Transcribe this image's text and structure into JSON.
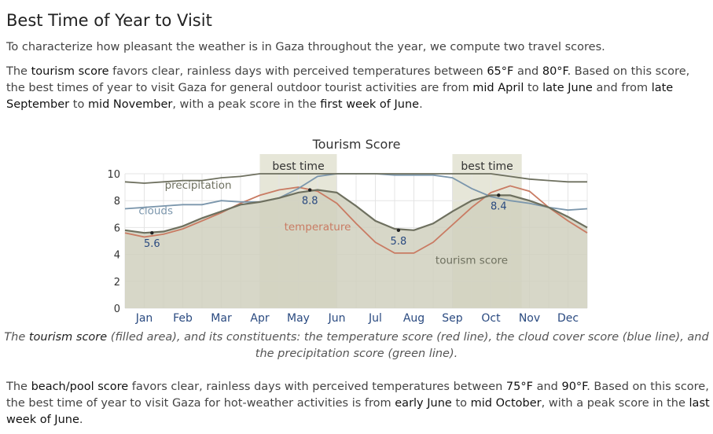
{
  "heading": "Best Time of Year to Visit",
  "intro": "To characterize how pleasant the weather is in Gaza throughout the year, we compute two travel scores.",
  "tourism_paragraph": [
    {
      "t": "The ",
      "b": false
    },
    {
      "t": "tourism score",
      "b": true
    },
    {
      "t": " favors clear, rainless days with perceived temperatures between ",
      "b": false
    },
    {
      "t": "65°F",
      "b": true
    },
    {
      "t": " and ",
      "b": false
    },
    {
      "t": "80°F",
      "b": true
    },
    {
      "t": ". Based on this score, the best times of year to visit Gaza for general outdoor tourist activities are from ",
      "b": false
    },
    {
      "t": "mid April",
      "b": true
    },
    {
      "t": " to ",
      "b": false
    },
    {
      "t": "late June",
      "b": true
    },
    {
      "t": " and from ",
      "b": false
    },
    {
      "t": "late September",
      "b": true
    },
    {
      "t": " to ",
      "b": false
    },
    {
      "t": "mid November",
      "b": true
    },
    {
      "t": ", with a peak score in the ",
      "b": false
    },
    {
      "t": "first week of June",
      "b": true
    },
    {
      "t": ".",
      "b": false
    }
  ],
  "caption": [
    {
      "t": "The ",
      "b": false
    },
    {
      "t": "tourism score",
      "b": true
    },
    {
      "t": " (filled area), and its constituents: the temperature score (red line), the cloud cover score (blue line), and the precipitation score (green line).",
      "b": false
    }
  ],
  "beach_paragraph": [
    {
      "t": "The ",
      "b": false
    },
    {
      "t": "beach/pool score",
      "b": true
    },
    {
      "t": " favors clear, rainless days with perceived temperatures between ",
      "b": false
    },
    {
      "t": "75°F",
      "b": true
    },
    {
      "t": " and ",
      "b": false
    },
    {
      "t": "90°F",
      "b": true
    },
    {
      "t": ". Based on this score, the best time of year to visit Gaza for hot-weather activities is from ",
      "b": false
    },
    {
      "t": "early June",
      "b": true
    },
    {
      "t": " to ",
      "b": false
    },
    {
      "t": "mid October",
      "b": true
    },
    {
      "t": ", with a peak score in the ",
      "b": false
    },
    {
      "t": "last week of June",
      "b": true
    },
    {
      "t": ".",
      "b": false
    }
  ],
  "chart_data": {
    "type": "area",
    "title": "Tourism Score",
    "ylim": [
      0,
      10
    ],
    "y_ticks": [
      0,
      2,
      4,
      6,
      8,
      10
    ],
    "categories": [
      "Jan",
      "Feb",
      "Mar",
      "Apr",
      "May",
      "Jun",
      "Jul",
      "Aug",
      "Sep",
      "Oct",
      "Nov",
      "Dec"
    ],
    "x_range": [
      0,
      12
    ],
    "grid": true,
    "best_time_label": "best time",
    "best_time_ranges": [
      [
        3.5,
        5.5
      ],
      [
        8.5,
        10.3
      ]
    ],
    "series": [
      {
        "name": "tourism score",
        "role": "filled-area",
        "color": "#6e705f",
        "fill": "#d0d0be",
        "x": [
          0,
          0.5,
          1,
          1.5,
          2,
          2.5,
          3,
          3.5,
          4,
          4.5,
          5,
          5.5,
          6,
          6.5,
          7,
          7.5,
          8,
          8.5,
          9,
          9.5,
          10,
          10.5,
          11,
          11.5,
          12
        ],
        "values": [
          5.8,
          5.6,
          5.7,
          6.1,
          6.7,
          7.2,
          7.7,
          7.9,
          8.2,
          8.6,
          8.8,
          8.6,
          7.6,
          6.5,
          5.9,
          5.8,
          6.3,
          7.2,
          8.0,
          8.4,
          8.4,
          8.0,
          7.5,
          6.8,
          6.0
        ]
      },
      {
        "name": "temperature",
        "role": "line",
        "color": "#c97b63",
        "x": [
          0,
          0.5,
          1,
          1.5,
          2,
          2.5,
          3,
          3.5,
          4,
          4.5,
          5,
          5.5,
          6,
          6.5,
          7,
          7.5,
          8,
          8.5,
          9,
          9.5,
          10,
          10.5,
          11,
          11.5,
          12
        ],
        "values": [
          5.6,
          5.3,
          5.5,
          5.9,
          6.5,
          7.1,
          7.8,
          8.4,
          8.8,
          9.0,
          8.7,
          7.8,
          6.3,
          4.9,
          4.1,
          4.1,
          4.9,
          6.2,
          7.5,
          8.6,
          9.1,
          8.7,
          7.5,
          6.5,
          5.6
        ]
      },
      {
        "name": "clouds",
        "role": "line",
        "color": "#7b96ac",
        "x": [
          0,
          0.5,
          1,
          1.5,
          2,
          2.5,
          3,
          3.5,
          4,
          4.5,
          5,
          5.5,
          6,
          6.5,
          7,
          7.5,
          8,
          8.5,
          9,
          9.5,
          10,
          10.5,
          11,
          11.5,
          12
        ],
        "values": [
          7.4,
          7.5,
          7.6,
          7.7,
          7.7,
          8.0,
          7.9,
          7.9,
          8.2,
          8.9,
          9.8,
          10.0,
          10.0,
          10.0,
          9.9,
          9.9,
          9.9,
          9.7,
          8.9,
          8.3,
          8.0,
          7.8,
          7.5,
          7.3,
          7.4
        ]
      },
      {
        "name": "precipitation",
        "role": "line",
        "color": "#6e705f",
        "x": [
          0,
          0.5,
          1,
          1.5,
          2,
          2.5,
          3,
          3.5,
          4,
          4.5,
          5,
          5.5,
          6,
          6.5,
          7,
          7.5,
          8,
          8.5,
          9,
          9.5,
          10,
          10.5,
          11,
          11.5,
          12
        ],
        "values": [
          9.4,
          9.3,
          9.4,
          9.5,
          9.5,
          9.7,
          9.8,
          10.0,
          10.0,
          10.0,
          10.0,
          10.0,
          10.0,
          10.0,
          10.0,
          10.0,
          10.0,
          10.0,
          10.0,
          10.0,
          9.8,
          9.6,
          9.5,
          9.4,
          9.4
        ]
      }
    ],
    "annotations": [
      {
        "x": 0.7,
        "y": 5.6,
        "label": "5.6"
      },
      {
        "x": 4.8,
        "y": 8.8,
        "label": "8.8"
      },
      {
        "x": 7.1,
        "y": 5.8,
        "label": "5.8"
      },
      {
        "x": 9.7,
        "y": 8.4,
        "label": "8.4"
      }
    ],
    "series_labels": [
      {
        "text": "precipitation",
        "x": 1.9,
        "y": 8.9,
        "color": "#6e705f"
      },
      {
        "text": "clouds",
        "x": 0.8,
        "y": 7.0,
        "color": "#7b96ac"
      },
      {
        "text": "temperature",
        "x": 5.0,
        "y": 5.8,
        "color": "#c97b63"
      },
      {
        "text": "tourism score",
        "x": 9.0,
        "y": 3.3,
        "color": "#6e705f"
      }
    ]
  }
}
